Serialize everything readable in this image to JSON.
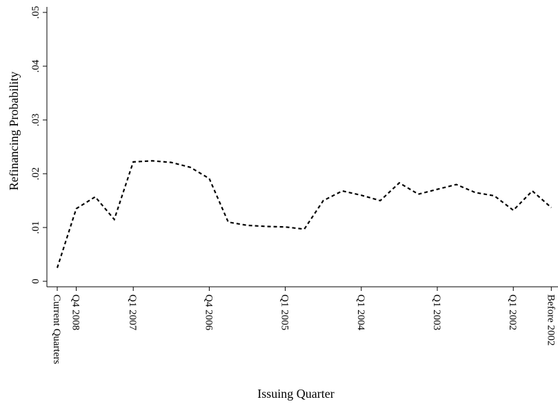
{
  "chart_data": {
    "type": "line",
    "xlabel": "Issuing Quarter",
    "ylabel": "Refinancing Probability",
    "ylim": [
      0,
      0.05
    ],
    "y_ticks": [
      {
        "value": 0,
        "label": "0"
      },
      {
        "value": 0.01,
        "label": ".01"
      },
      {
        "value": 0.02,
        "label": ".02"
      },
      {
        "value": 0.03,
        "label": ".03"
      },
      {
        "value": 0.04,
        "label": ".04"
      },
      {
        "value": 0.05,
        "label": ".05"
      }
    ],
    "x_ticks": [
      {
        "index": 0,
        "label": "Current Quarters"
      },
      {
        "index": 1,
        "label": "Q4 2008"
      },
      {
        "index": 4,
        "label": "Q1 2007"
      },
      {
        "index": 8,
        "label": "Q4 2006"
      },
      {
        "index": 12,
        "label": "Q1 2005"
      },
      {
        "index": 16,
        "label": "Q1 2004"
      },
      {
        "index": 20,
        "label": "Q1 2003"
      },
      {
        "index": 24,
        "label": "Q1 2002"
      },
      {
        "index": 26,
        "label": "Before 2002"
      }
    ],
    "x_count": 27,
    "grid": false,
    "line_style": "dashed",
    "series": [
      {
        "values": [
          0.0025,
          0.0135,
          0.0157,
          0.0115,
          0.0222,
          0.0224,
          0.0221,
          0.0212,
          0.0191,
          0.011,
          0.0104,
          0.0102,
          0.0101,
          0.0097,
          0.015,
          0.0168,
          0.016,
          0.015,
          0.0183,
          0.0162,
          0.0171,
          0.018,
          0.0165,
          0.0159,
          0.0132,
          0.0168,
          0.0137
        ]
      }
    ]
  }
}
